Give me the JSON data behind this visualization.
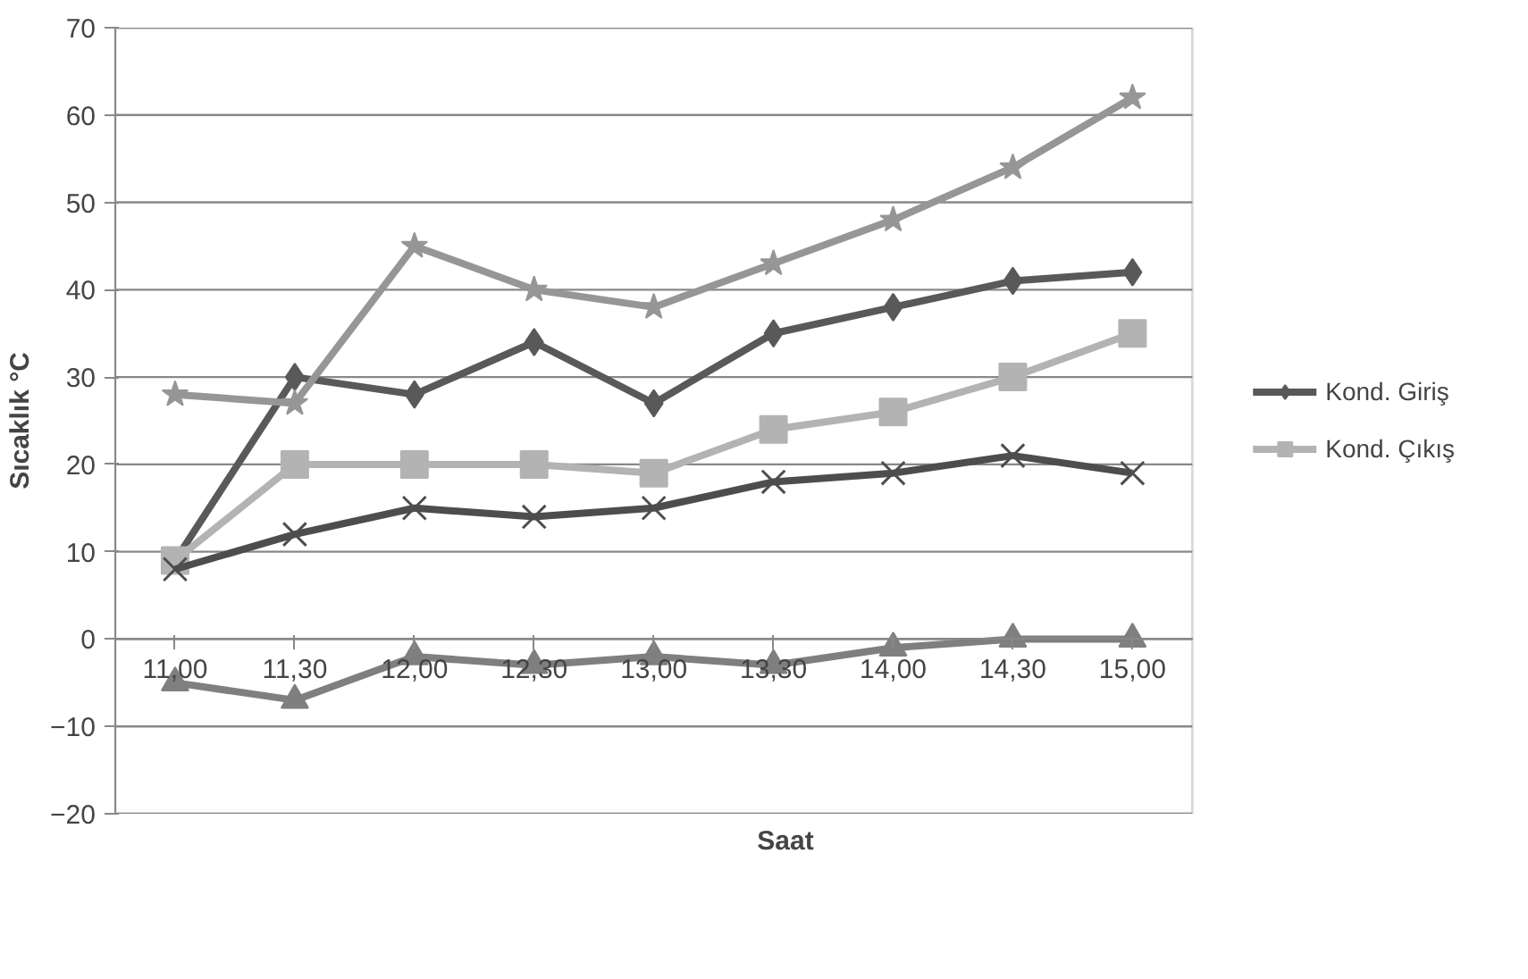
{
  "chart_data": {
    "type": "line",
    "xlabel": "Saat",
    "ylabel": "Sıcaklık °C",
    "categories": [
      "11,00",
      "11,30",
      "12,00",
      "12,30",
      "13,00",
      "13,30",
      "14,00",
      "14,30",
      "15,00"
    ],
    "ylim": [
      -20,
      70
    ],
    "yticks": [
      -20,
      -10,
      0,
      10,
      20,
      30,
      40,
      50,
      60,
      70
    ],
    "grid": "y",
    "legend": "right",
    "series": [
      {
        "name": "Kond. Giriş",
        "color": "#595959",
        "marker": "diamond",
        "values": [
          9,
          30,
          28,
          34,
          27,
          35,
          38,
          41,
          42
        ]
      },
      {
        "name": "Kond. Çıkış",
        "color": "#b3b3b3",
        "marker": "square",
        "values": [
          9,
          20,
          20,
          20,
          19,
          24,
          26,
          30,
          35
        ]
      },
      {
        "color": "#969696",
        "marker": "star",
        "values": [
          28,
          27,
          45,
          40,
          38,
          43,
          48,
          54,
          62
        ]
      },
      {
        "color": "#4d4d4d",
        "marker": "cross",
        "values": [
          8,
          12,
          15,
          14,
          15,
          18,
          19,
          21,
          19
        ]
      },
      {
        "color": "#7f7f7f",
        "marker": "triangle",
        "values": [
          -5,
          -7,
          -2,
          -3,
          -2,
          -3,
          -1,
          0,
          0
        ]
      }
    ]
  }
}
